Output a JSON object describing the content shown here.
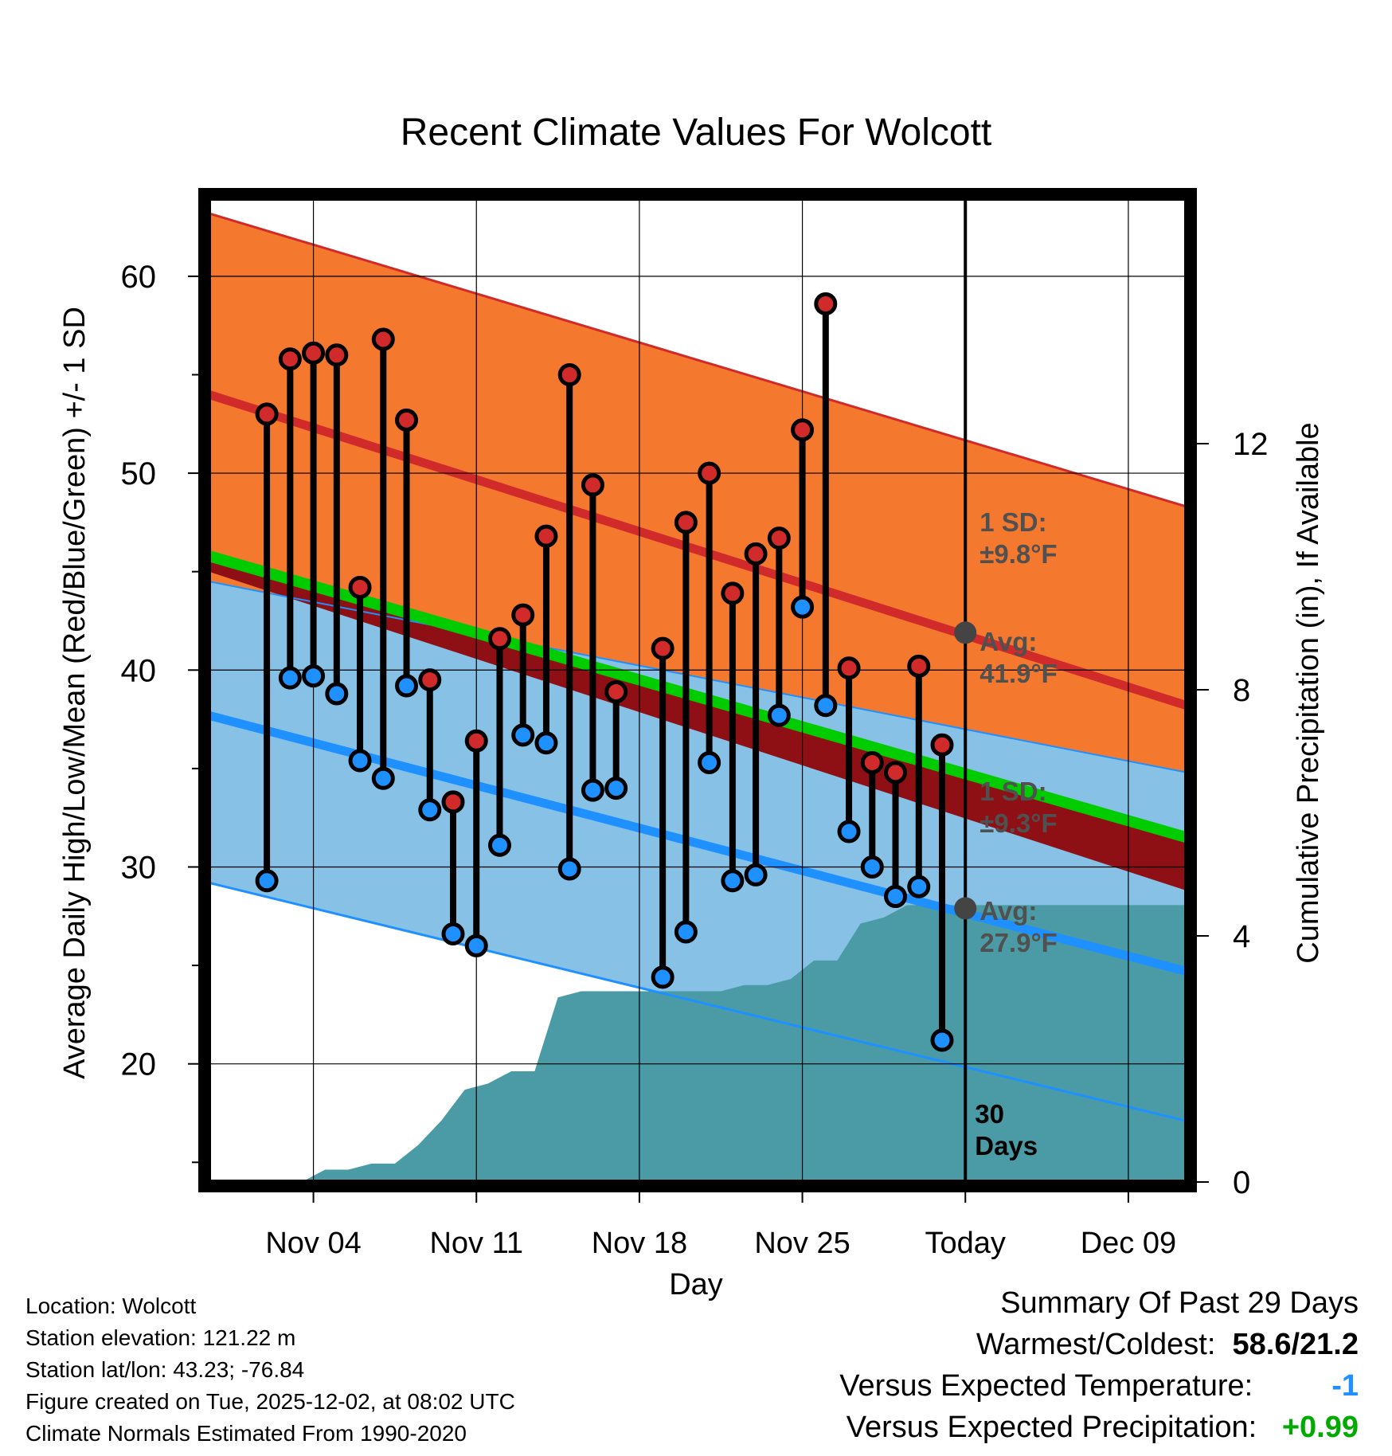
{
  "colors": {
    "high_band": "#f4792f",
    "normal_high_line": "#d02a2a",
    "normal_low_line": "#1e90ff",
    "low_band": "#87c1e6",
    "mean_band": "#8e1015",
    "mean_line": "#00cc00",
    "precip_fill": "#4a9ba5",
    "high_marker": "#d02a2a",
    "low_marker": "#1e90ff",
    "annotation_text": "#505050",
    "warm_cold_value": "#000000",
    "temp_departure": "#1e90ff",
    "precip_departure": "#00aa00"
  },
  "chart_data": {
    "type": "line",
    "title": "Recent Climate Values For Wolcott",
    "xlabel": "Day",
    "ylabel": "Average Daily High/Low/Mean (Red/Blue/Green) +/- 1 SD",
    "y2label": "Cumulative Precipitation (in), If Available",
    "ylim": [
      14,
      64
    ],
    "y2lim": [
      0,
      16
    ],
    "xlim": [
      -1.5,
      40.5
    ],
    "x_ticks": [
      {
        "day": 3,
        "label": "Nov 04"
      },
      {
        "day": 10,
        "label": "Nov 11"
      },
      {
        "day": 17,
        "label": "Nov 18"
      },
      {
        "day": 24,
        "label": "Nov 25"
      },
      {
        "day": 31,
        "label": "Today"
      },
      {
        "day": 38,
        "label": "Dec 09"
      }
    ],
    "y_ticks": [
      20,
      30,
      40,
      50,
      60
    ],
    "y2_ticks": [
      0,
      4,
      8,
      12
    ],
    "normal_high": {
      "start": 54.0,
      "end": 38.2
    },
    "normal_high_sd": {
      "start": 63.2,
      "end": 48.3
    },
    "normal_low": {
      "start": 37.7,
      "end": 24.7
    },
    "normal_low_sd_lower": {
      "start": 29.2,
      "end": 17.1
    },
    "normal_mean": {
      "start": 45.8,
      "end": 31.5
    },
    "normal_mean_sd": {
      "start": 45.0,
      "end": 28.8
    },
    "high_low_upper": {
      "start": 44.5,
      "end": 34.8
    },
    "grid_x": [
      3,
      10,
      17,
      24,
      31,
      38
    ],
    "grid_y": [
      20,
      30,
      40,
      50,
      60
    ],
    "days": [
      1,
      2,
      3,
      4,
      5,
      6,
      7,
      8,
      9,
      10,
      11,
      12,
      13,
      14,
      15,
      16,
      17,
      18,
      19,
      20,
      21,
      22,
      23,
      24,
      25,
      26,
      27,
      28,
      29,
      30
    ],
    "highs": [
      53.0,
      55.8,
      56.1,
      56.0,
      44.2,
      56.8,
      52.7,
      39.5,
      33.3,
      36.4,
      41.6,
      42.8,
      46.8,
      55.0,
      49.4,
      38.9,
      null,
      41.1,
      47.5,
      50.0,
      43.9,
      45.9,
      46.7,
      52.2,
      58.6,
      40.1,
      35.3,
      34.8,
      40.2,
      36.2
    ],
    "lows": [
      29.3,
      39.6,
      39.7,
      38.8,
      35.4,
      34.5,
      39.2,
      32.9,
      26.6,
      26.0,
      31.1,
      36.7,
      36.3,
      29.9,
      33.9,
      34.0,
      null,
      24.4,
      26.7,
      35.3,
      29.3,
      29.6,
      37.7,
      43.2,
      38.2,
      31.8,
      30.0,
      28.5,
      29.0,
      21.2
    ],
    "cumulative_precip": [
      [
        0.0,
        0.0
      ],
      [
        2.5,
        0.0
      ],
      [
        3.5,
        0.2
      ],
      [
        4.5,
        0.2
      ],
      [
        5.5,
        0.3
      ],
      [
        6.5,
        0.3
      ],
      [
        7.5,
        0.6
      ],
      [
        8.5,
        1.0
      ],
      [
        9.5,
        1.5
      ],
      [
        10.5,
        1.6
      ],
      [
        11.5,
        1.8
      ],
      [
        12.5,
        1.8
      ],
      [
        13.5,
        3.0
      ],
      [
        14.5,
        3.1
      ],
      [
        20.5,
        3.1
      ],
      [
        21.5,
        3.2
      ],
      [
        22.5,
        3.2
      ],
      [
        23.5,
        3.3
      ],
      [
        24.5,
        3.6
      ],
      [
        25.5,
        3.6
      ],
      [
        26.5,
        4.2
      ],
      [
        27.5,
        4.3
      ],
      [
        28.5,
        4.5
      ],
      [
        31.0,
        4.5
      ],
      [
        40.5,
        4.5
      ]
    ],
    "today_day": 31,
    "annotations": {
      "high_sd": "1 SD:\n±9.8°F",
      "high_avg": "Avg:\n41.9°F",
      "low_sd": "1 SD:\n±9.3°F",
      "low_avg": "Avg:\n27.9°F",
      "days_label": "30\nDays"
    },
    "today_high_avg": 41.9,
    "today_low_avg": 27.9
  },
  "footer": {
    "location": "Location: Wolcott",
    "elevation": "Station elevation: 121.22 m",
    "latlon": "Station lat/lon: 43.23; -76.84",
    "created": "Figure created on Tue, 2025-12-02, at 08:02 UTC",
    "normals": "Climate Normals Estimated From 1990-2020"
  },
  "summary": {
    "title": "Summary Of Past 29 Days",
    "warm_cold_label": "Warmest/Coldest:",
    "warm_cold_value": "58.6/21.2",
    "temp_label": "Versus Expected Temperature:",
    "temp_value": "-1",
    "precip_label": "Versus Expected Precipitation:",
    "precip_value": "+0.99"
  }
}
